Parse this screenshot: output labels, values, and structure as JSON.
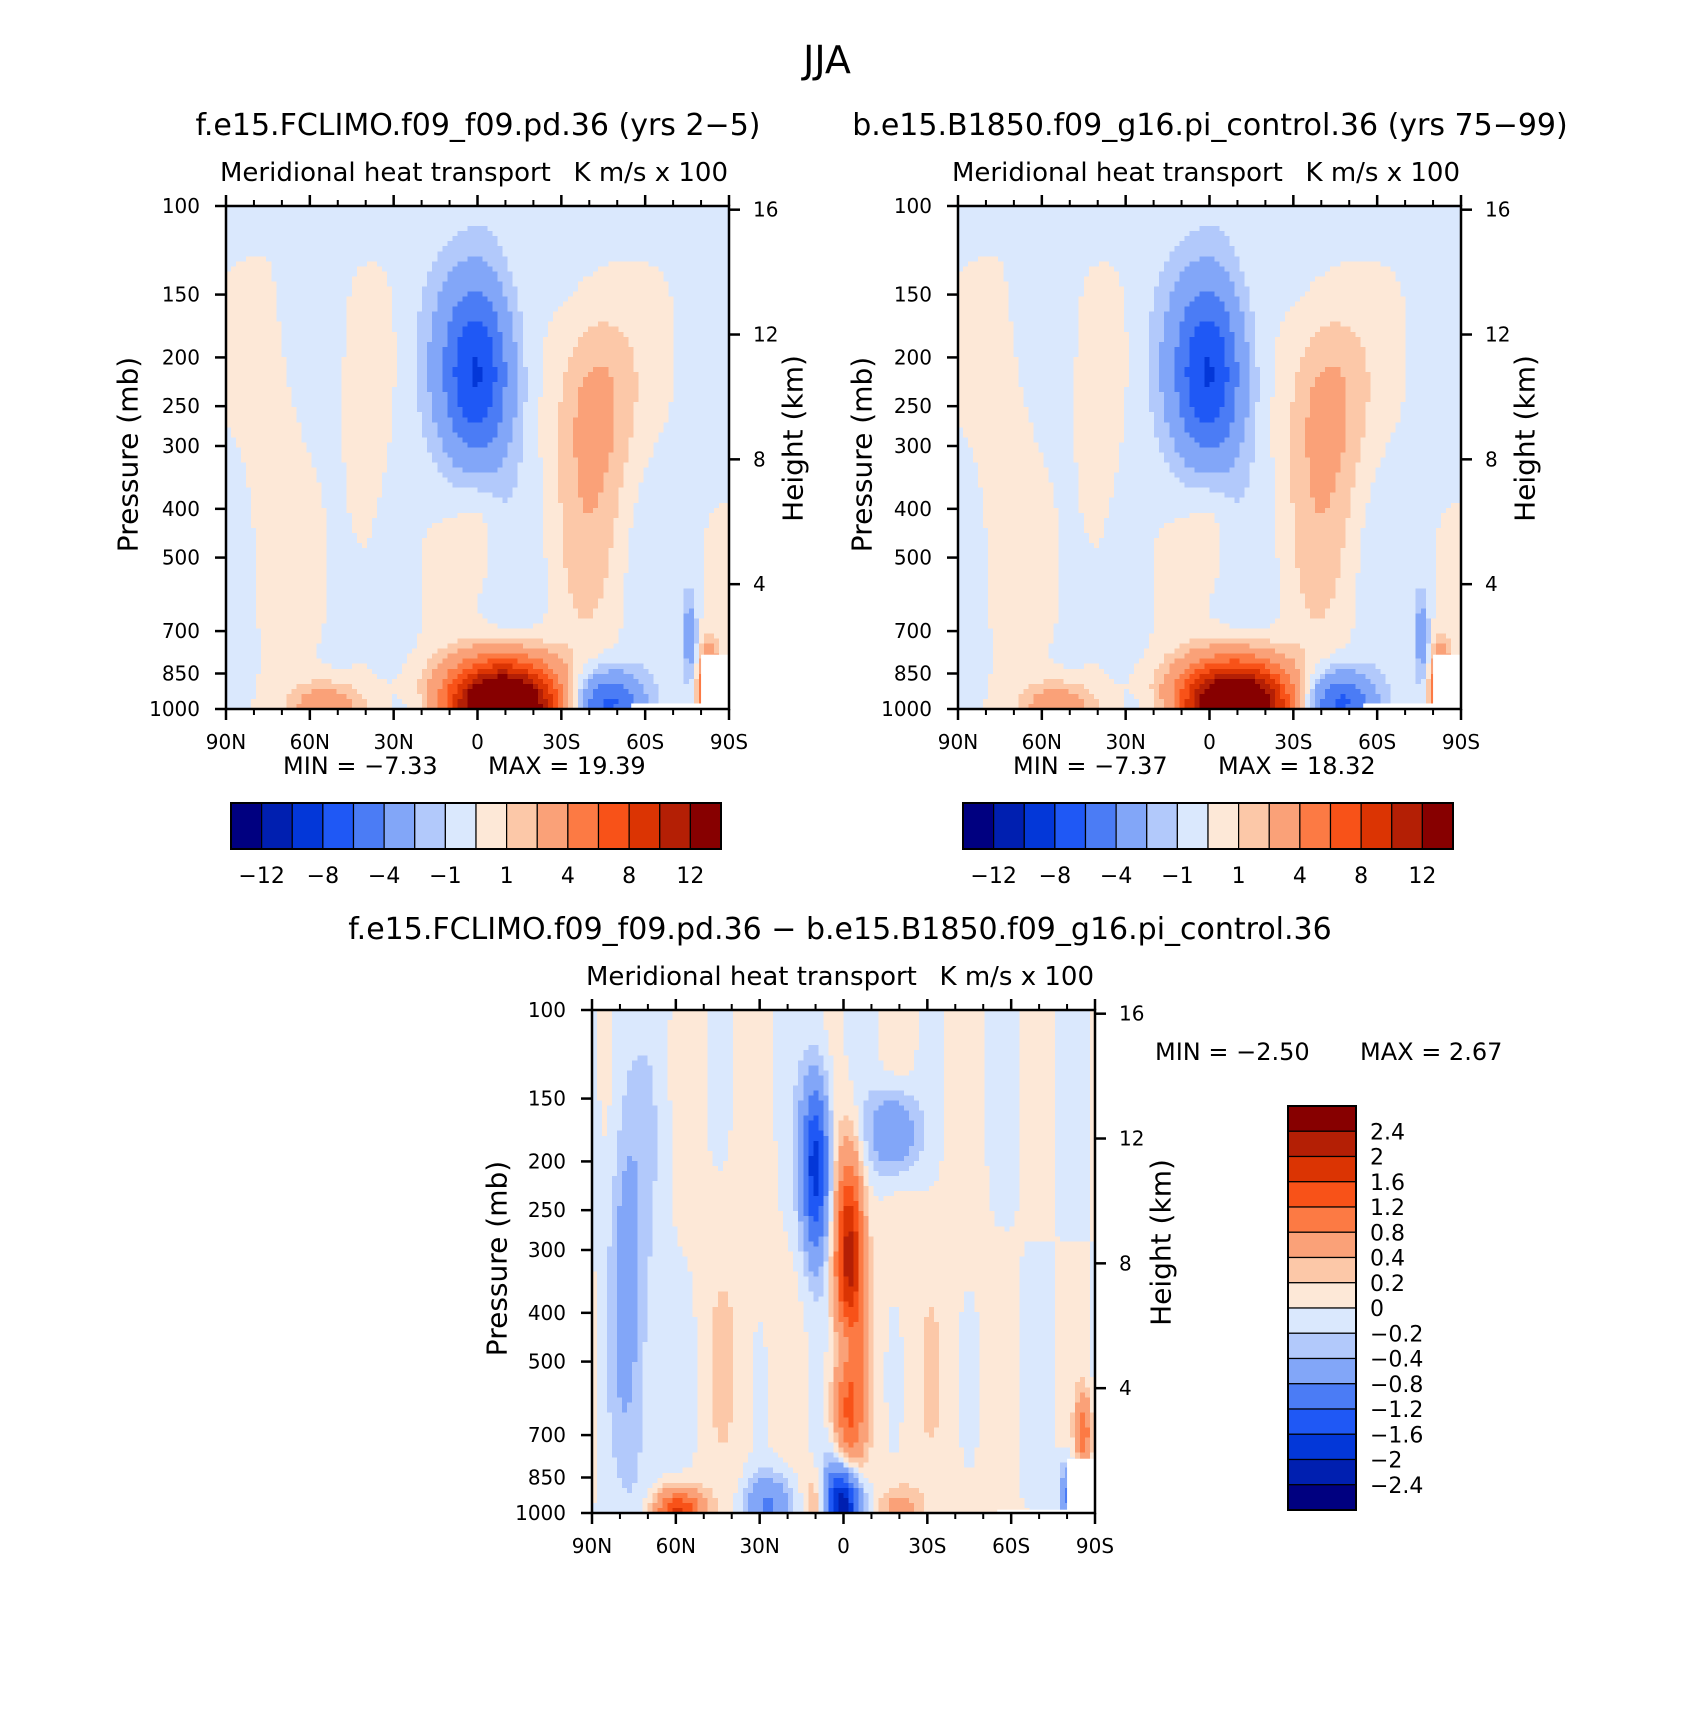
{
  "figure": {
    "title": "JJA"
  },
  "chart_data": [
    {
      "type": "heatmap",
      "title": "f.e15.FCLIMO.f09_f09.pd.36 (yrs 2−5)",
      "left_subtitle": "Meridional heat transport",
      "right_subtitle": "K m/s x 100",
      "xlabel": "",
      "ylabel": "Pressure (mb)",
      "ylabel_right": "Height (km)",
      "x_tick_labels": [
        "90N",
        "60N",
        "30N",
        "0",
        "30S",
        "60S",
        "90S"
      ],
      "y_tick_labels": [
        "100",
        "150",
        "200",
        "250",
        "300",
        "400",
        "500",
        "700",
        "850",
        "1000"
      ],
      "y_right_tick_labels": [
        "16",
        "12",
        "8",
        "4"
      ],
      "min_label": "MIN =   −7.33",
      "max_label": "MAX =   19.39",
      "colorbar_labels": [
        "−12",
        "−8",
        "−4",
        "−1",
        "1",
        "4",
        "8",
        "12"
      ],
      "features": [
        {
          "name": "Tropical upper-level minimum",
          "lat": 0,
          "p": 220,
          "value": -7.0
        },
        {
          "name": "Near-surface tropical maximum",
          "lat": -10,
          "p": 970,
          "value": 19.39
        },
        {
          "name": "Southern mid-latitude surface minimum",
          "lat": -45,
          "p": 960,
          "value": -6.0
        },
        {
          "name": "Subtropical upper positive lobe",
          "lat": -40,
          "p": 250,
          "value": 3.0
        }
      ]
    },
    {
      "type": "heatmap",
      "title": "b.e15.B1850.f09_g16.pi_control.36 (yrs 75−99)",
      "left_subtitle": "Meridional heat transport",
      "right_subtitle": "K m/s x 100",
      "xlabel": "",
      "ylabel": "Pressure (mb)",
      "ylabel_right": "Height (km)",
      "x_tick_labels": [
        "90N",
        "60N",
        "30N",
        "0",
        "30S",
        "60S",
        "90S"
      ],
      "y_tick_labels": [
        "100",
        "150",
        "200",
        "250",
        "300",
        "400",
        "500",
        "700",
        "850",
        "1000"
      ],
      "y_right_tick_labels": [
        "16",
        "12",
        "8",
        "4"
      ],
      "min_label": "MIN =   −7.37",
      "max_label": "MAX =   18.32",
      "colorbar_labels": [
        "−12",
        "−8",
        "−4",
        "−1",
        "1",
        "4",
        "8",
        "12"
      ],
      "features": [
        {
          "name": "Tropical upper-level minimum",
          "lat": 0,
          "p": 220,
          "value": -7.37
        },
        {
          "name": "Near-surface tropical maximum",
          "lat": -10,
          "p": 970,
          "value": 18.32
        },
        {
          "name": "Southern mid-latitude surface minimum",
          "lat": -45,
          "p": 960,
          "value": -6.0
        }
      ]
    },
    {
      "type": "heatmap",
      "title": "f.e15.FCLIMO.f09_f09.pd.36 − b.e15.B1850.f09_g16.pi_control.36",
      "left_subtitle": "Meridional heat transport",
      "right_subtitle": "K m/s x 100",
      "xlabel": "",
      "ylabel": "Pressure (mb)",
      "ylabel_right": "Height (km)",
      "x_tick_labels": [
        "90N",
        "60N",
        "30N",
        "0",
        "30S",
        "60S",
        "90S"
      ],
      "y_tick_labels": [
        "100",
        "150",
        "200",
        "250",
        "300",
        "400",
        "500",
        "700",
        "850",
        "1000"
      ],
      "y_right_tick_labels": [
        "16",
        "12",
        "8",
        "4"
      ],
      "min_label": "MIN =   −2.50",
      "max_label": "MAX =    2.67",
      "colorbar_labels": [
        "2.4",
        "2",
        "1.6",
        "1.2",
        "0.8",
        "0.4",
        "0.2",
        "0",
        "−0.2",
        "−0.4",
        "−0.8",
        "−1.2",
        "−1.6",
        "−2",
        "−2.4"
      ],
      "features": [
        {
          "name": "Near-surface equatorial minimum",
          "lat": 0,
          "p": 950,
          "value": -2.5
        },
        {
          "name": "Upper equatorial maximum",
          "lat": -2,
          "p": 300,
          "value": 2.67
        },
        {
          "name": "Upper minimum north of equator",
          "lat": 10,
          "p": 200,
          "value": -1.6
        },
        {
          "name": "Surface maximum at 60N",
          "lat": 60,
          "p": 990,
          "value": 1.6
        }
      ]
    }
  ],
  "colors": {
    "main_scale": [
      "#000080",
      "#001fb0",
      "#0337d8",
      "#1f58f5",
      "#4b7cf5",
      "#82a6f8",
      "#b2c9fb",
      "#dae8fd",
      "#fde8d7",
      "#fcc8a8",
      "#faa178",
      "#fc7a44",
      "#f85218",
      "#db3403",
      "#b41f05",
      "#870000"
    ],
    "diff_scale": [
      "#870000",
      "#b41f05",
      "#db3403",
      "#f85218",
      "#fc7a44",
      "#faa178",
      "#fcc8a8",
      "#fde8d7",
      "#dae8fd",
      "#b2c9fb",
      "#82a6f8",
      "#4b7cf5",
      "#1f58f5",
      "#0337d8",
      "#001fb0",
      "#000080"
    ],
    "missing": "#ffffff"
  }
}
